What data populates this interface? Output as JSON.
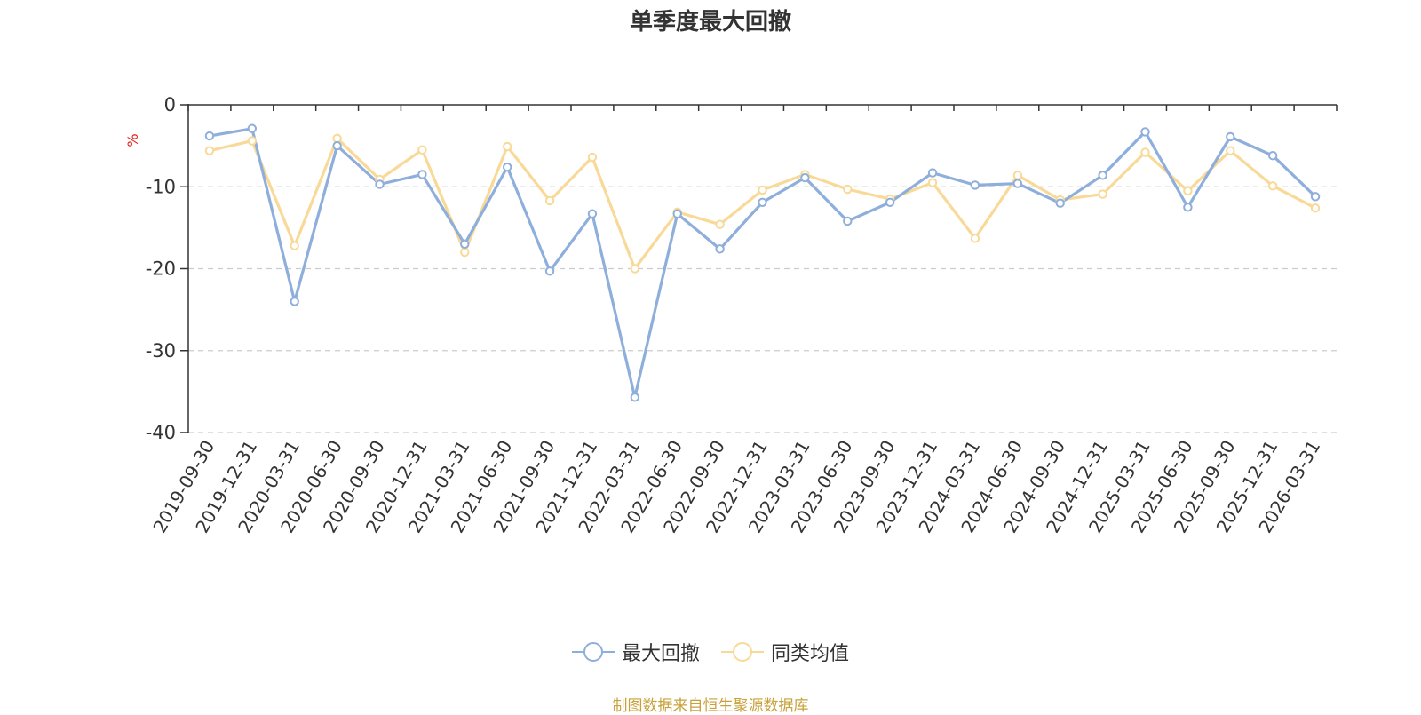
{
  "chart_data": {
    "type": "line",
    "title": "单季度最大回撤",
    "ylabel": "%",
    "xlabel": "",
    "ylim": [
      -40,
      0
    ],
    "yticks": [
      0,
      -10,
      -20,
      -30,
      -40
    ],
    "grid": true,
    "legend_position": "bottom-center",
    "categories": [
      "2019-09-30",
      "2019-12-31",
      "2020-03-31",
      "2020-06-30",
      "2020-09-30",
      "2020-12-31",
      "2021-03-31",
      "2021-06-30",
      "2021-09-30",
      "2021-12-31",
      "2022-03-31",
      "2022-06-30",
      "2022-09-30",
      "2022-12-31",
      "2023-03-31",
      "2023-06-30",
      "2023-09-30",
      "2023-12-31",
      "2024-03-31",
      "2024-06-30",
      "2024-09-30",
      "2024-12-31",
      "2025-03-31",
      "2025-06-30",
      "2025-09-30",
      "2025-12-31",
      "2026-03-31"
    ],
    "series": [
      {
        "name": "最大回撤",
        "color": "#8eaedb",
        "values": [
          -3.8,
          -2.9,
          -24.0,
          -5.0,
          -9.7,
          -8.5,
          -17.0,
          -7.6,
          -20.3,
          -13.3,
          -35.7,
          -13.3,
          -17.6,
          -11.9,
          -8.9,
          -14.2,
          -11.9,
          -8.3,
          -9.8,
          -9.6,
          -12.0,
          -8.6,
          -3.3,
          -12.5,
          -3.9,
          -6.2,
          -11.2
        ]
      },
      {
        "name": "同类均值",
        "color": "#f9d997",
        "values": [
          -5.6,
          -4.4,
          -17.2,
          -4.1,
          -9.1,
          -5.5,
          -18.0,
          -5.1,
          -11.7,
          -6.4,
          -20.0,
          -13.1,
          -14.6,
          -10.4,
          -8.5,
          -10.3,
          -11.5,
          -9.5,
          -16.3,
          -8.6,
          -11.6,
          -10.9,
          -5.8,
          -10.5,
          -5.6,
          -9.9,
          -12.6
        ]
      }
    ]
  },
  "source_note": "制图数据来自恒生聚源数据库"
}
